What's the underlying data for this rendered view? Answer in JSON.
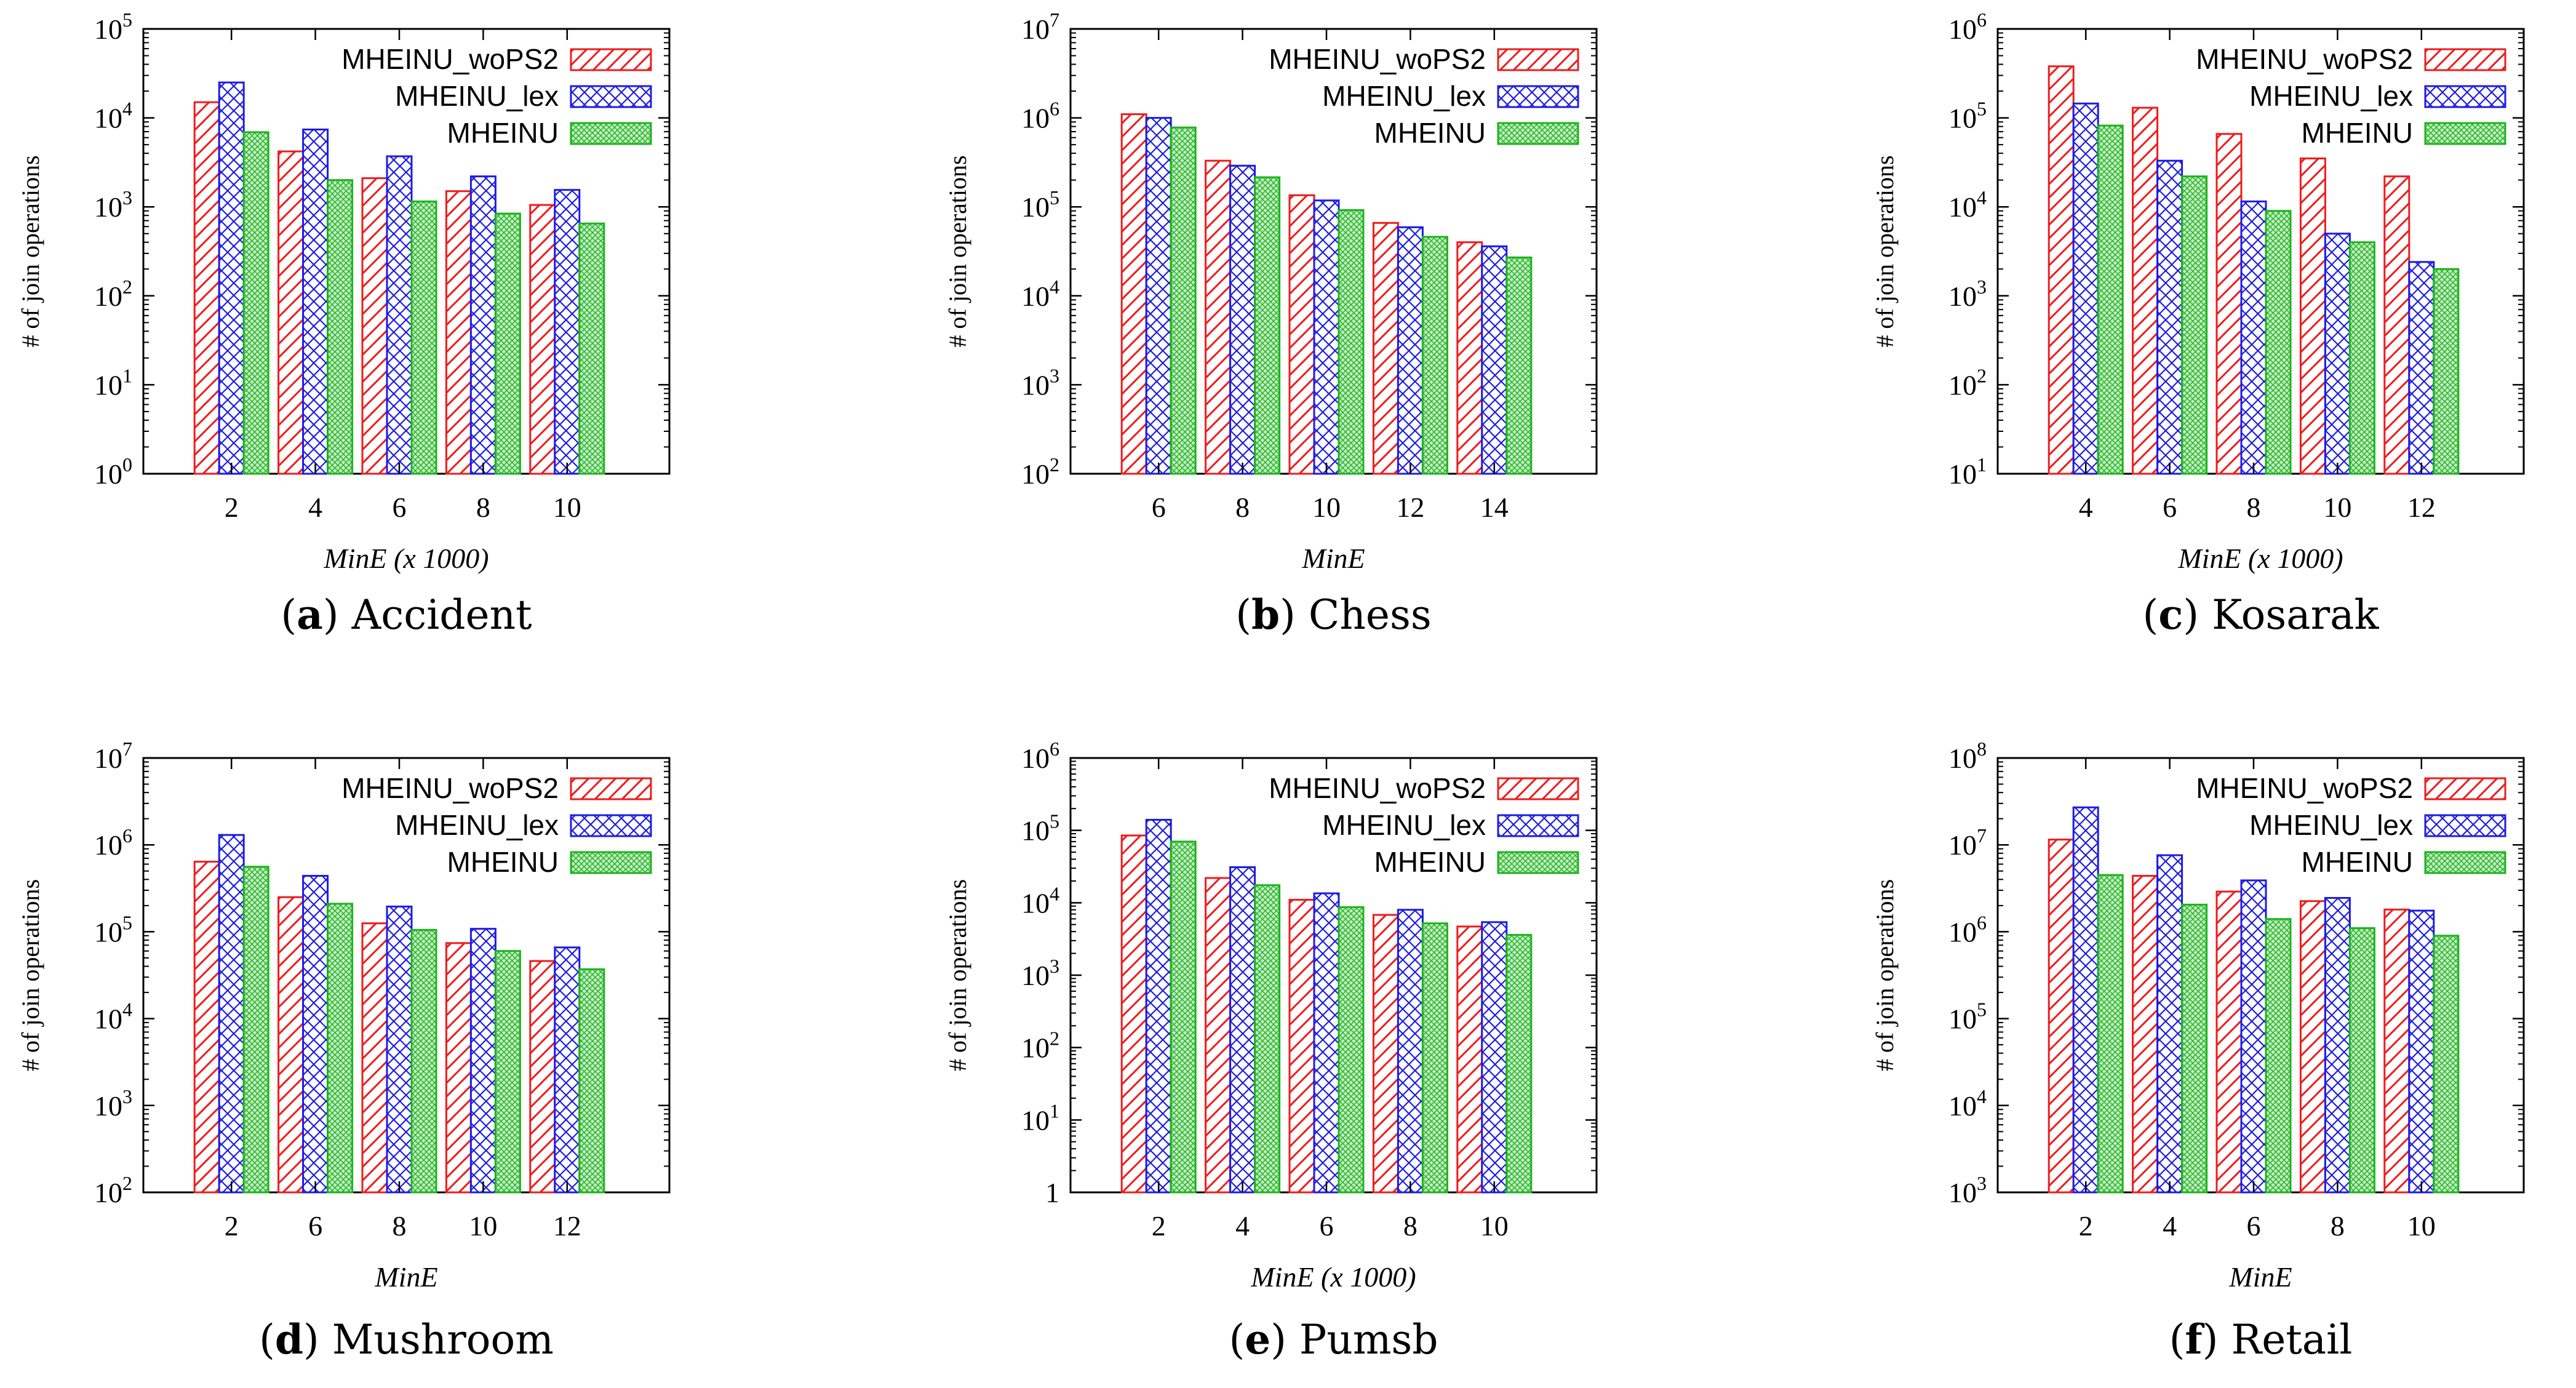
{
  "legend": [
    "MHEINU_woPS2",
    "MHEINU_lex",
    "MHEINU"
  ],
  "colors": {
    "woPS2": "#ee1c1c",
    "lex": "#1c1ce6",
    "mheinu": "#1cb41c"
  },
  "chart_data": [
    {
      "type": "bar",
      "scale": "log",
      "ylabel": "# of join operations",
      "xlabel": "MinE (x 1000)",
      "caption_letter": "a",
      "caption_text": "Accident",
      "ylim_exp": [
        0,
        5
      ],
      "categories": [
        "2",
        "4",
        "6",
        "8",
        "10"
      ],
      "series": [
        {
          "name": "MHEINU_woPS2",
          "values": [
            15000,
            4200,
            2100,
            1500,
            1050
          ]
        },
        {
          "name": "MHEINU_lex",
          "values": [
            25000,
            7400,
            3700,
            2200,
            1550
          ]
        },
        {
          "name": "MHEINU",
          "values": [
            6900,
            2000,
            1150,
            840,
            650
          ]
        }
      ]
    },
    {
      "type": "bar",
      "scale": "log",
      "ylabel": "# of join operations",
      "xlabel": "MinE",
      "caption_letter": "b",
      "caption_text": "Chess",
      "ylim_exp": [
        2,
        7
      ],
      "categories": [
        "6",
        "8",
        "10",
        "12",
        "14"
      ],
      "series": [
        {
          "name": "MHEINU_woPS2",
          "values": [
            1100000,
            330000,
            135000,
            66000,
            40000
          ]
        },
        {
          "name": "MHEINU_lex",
          "values": [
            1000000,
            290000,
            118000,
            59000,
            36000
          ]
        },
        {
          "name": "MHEINU",
          "values": [
            780000,
            215000,
            92000,
            46000,
            27000
          ]
        }
      ]
    },
    {
      "type": "bar",
      "scale": "log",
      "ylabel": "# of join operations",
      "xlabel": "MinE (x 1000)",
      "caption_letter": "c",
      "caption_text": "Kosarak",
      "ylim_exp": [
        1,
        6
      ],
      "categories": [
        "4",
        "6",
        "8",
        "10",
        "12"
      ],
      "series": [
        {
          "name": "MHEINU_woPS2",
          "values": [
            380000,
            130000,
            66000,
            35000,
            22000
          ]
        },
        {
          "name": "MHEINU_lex",
          "values": [
            145000,
            33000,
            11500,
            5000,
            2400
          ]
        },
        {
          "name": "MHEINU",
          "values": [
            82000,
            22000,
            9000,
            4000,
            2000
          ]
        }
      ]
    },
    {
      "type": "bar",
      "scale": "log",
      "ylabel": "# of join operations",
      "xlabel": "MinE",
      "caption_letter": "d",
      "caption_text": "Mushroom",
      "ylim_exp": [
        2,
        7
      ],
      "categories": [
        "2",
        "6",
        "8",
        "10",
        "12"
      ],
      "series": [
        {
          "name": "MHEINU_woPS2",
          "values": [
            640000,
            250000,
            125000,
            74000,
            46000
          ]
        },
        {
          "name": "MHEINU_lex",
          "values": [
            1300000,
            440000,
            195000,
            108000,
            66000
          ]
        },
        {
          "name": "MHEINU",
          "values": [
            560000,
            210000,
            105000,
            60000,
            37000
          ]
        }
      ]
    },
    {
      "type": "bar",
      "scale": "log",
      "ylabel": "# of join operations",
      "xlabel": "MinE (x 1000)",
      "caption_letter": "e",
      "caption_text": "Pumsb",
      "ylim_exp": [
        0,
        6
      ],
      "categories": [
        "2",
        "4",
        "6",
        "8",
        "10"
      ],
      "series": [
        {
          "name": "MHEINU_woPS2",
          "values": [
            85000,
            22000,
            11000,
            6800,
            4700
          ]
        },
        {
          "name": "MHEINU_lex",
          "values": [
            140000,
            31000,
            13500,
            8000,
            5400
          ]
        },
        {
          "name": "MHEINU",
          "values": [
            70000,
            17500,
            8700,
            5200,
            3600
          ]
        }
      ]
    },
    {
      "type": "bar",
      "scale": "log",
      "ylabel": "# of join operations",
      "xlabel": "MinE",
      "caption_letter": "f",
      "caption_text": "Retail",
      "ylim_exp": [
        3,
        8
      ],
      "categories": [
        "2",
        "4",
        "6",
        "8",
        "10"
      ],
      "series": [
        {
          "name": "MHEINU_woPS2",
          "values": [
            11500000,
            4400000,
            2900000,
            2250000,
            1800000
          ]
        },
        {
          "name": "MHEINU_lex",
          "values": [
            27000000,
            7600000,
            3900000,
            2450000,
            1750000
          ]
        },
        {
          "name": "MHEINU",
          "values": [
            4500000,
            2050000,
            1400000,
            1100000,
            900000
          ]
        }
      ]
    }
  ]
}
